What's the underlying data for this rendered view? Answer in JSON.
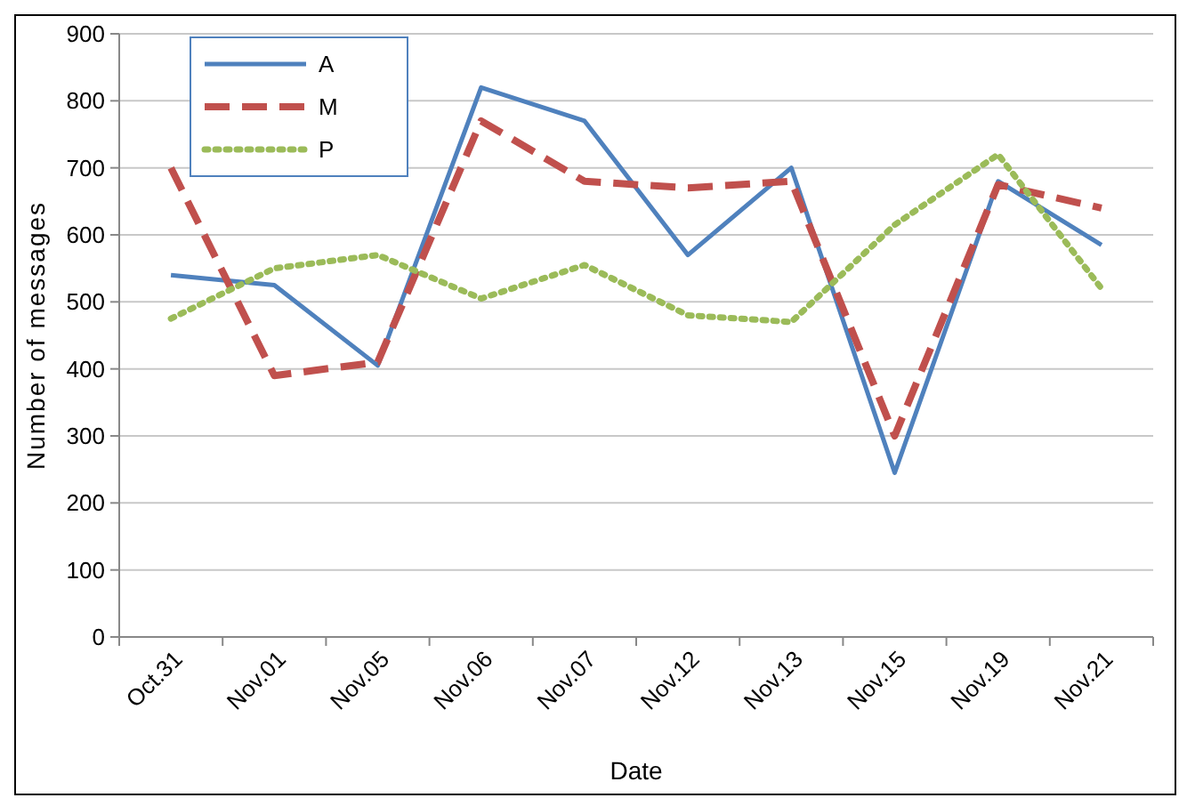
{
  "chart_data": {
    "type": "line",
    "xlabel": "Date",
    "ylabel": "Number of messages",
    "categories": [
      "Oct.31",
      "Nov.01",
      "Nov.05",
      "Nov.06",
      "Nov.07",
      "Nov.12",
      "Nov.13",
      "Nov.15",
      "Nov.19",
      "Nov.21"
    ],
    "series": [
      {
        "name": "A",
        "color": "#4f81bd",
        "line_style": "solid",
        "values": [
          540,
          525,
          405,
          820,
          770,
          570,
          700,
          245,
          680,
          585
        ]
      },
      {
        "name": "M",
        "color": "#c0504d",
        "line_style": "dashed",
        "values": [
          700,
          390,
          410,
          770,
          680,
          670,
          680,
          300,
          675,
          640
        ]
      },
      {
        "name": "P",
        "color": "#9bbb59",
        "line_style": "dotted",
        "values": [
          475,
          550,
          570,
          505,
          555,
          480,
          470,
          615,
          720,
          520
        ]
      }
    ],
    "ylim": [
      0,
      900
    ],
    "yticks": [
      0,
      100,
      200,
      300,
      400,
      500,
      600,
      700,
      800,
      900
    ],
    "grid": "y",
    "legend": "top left",
    "marker": "none"
  }
}
